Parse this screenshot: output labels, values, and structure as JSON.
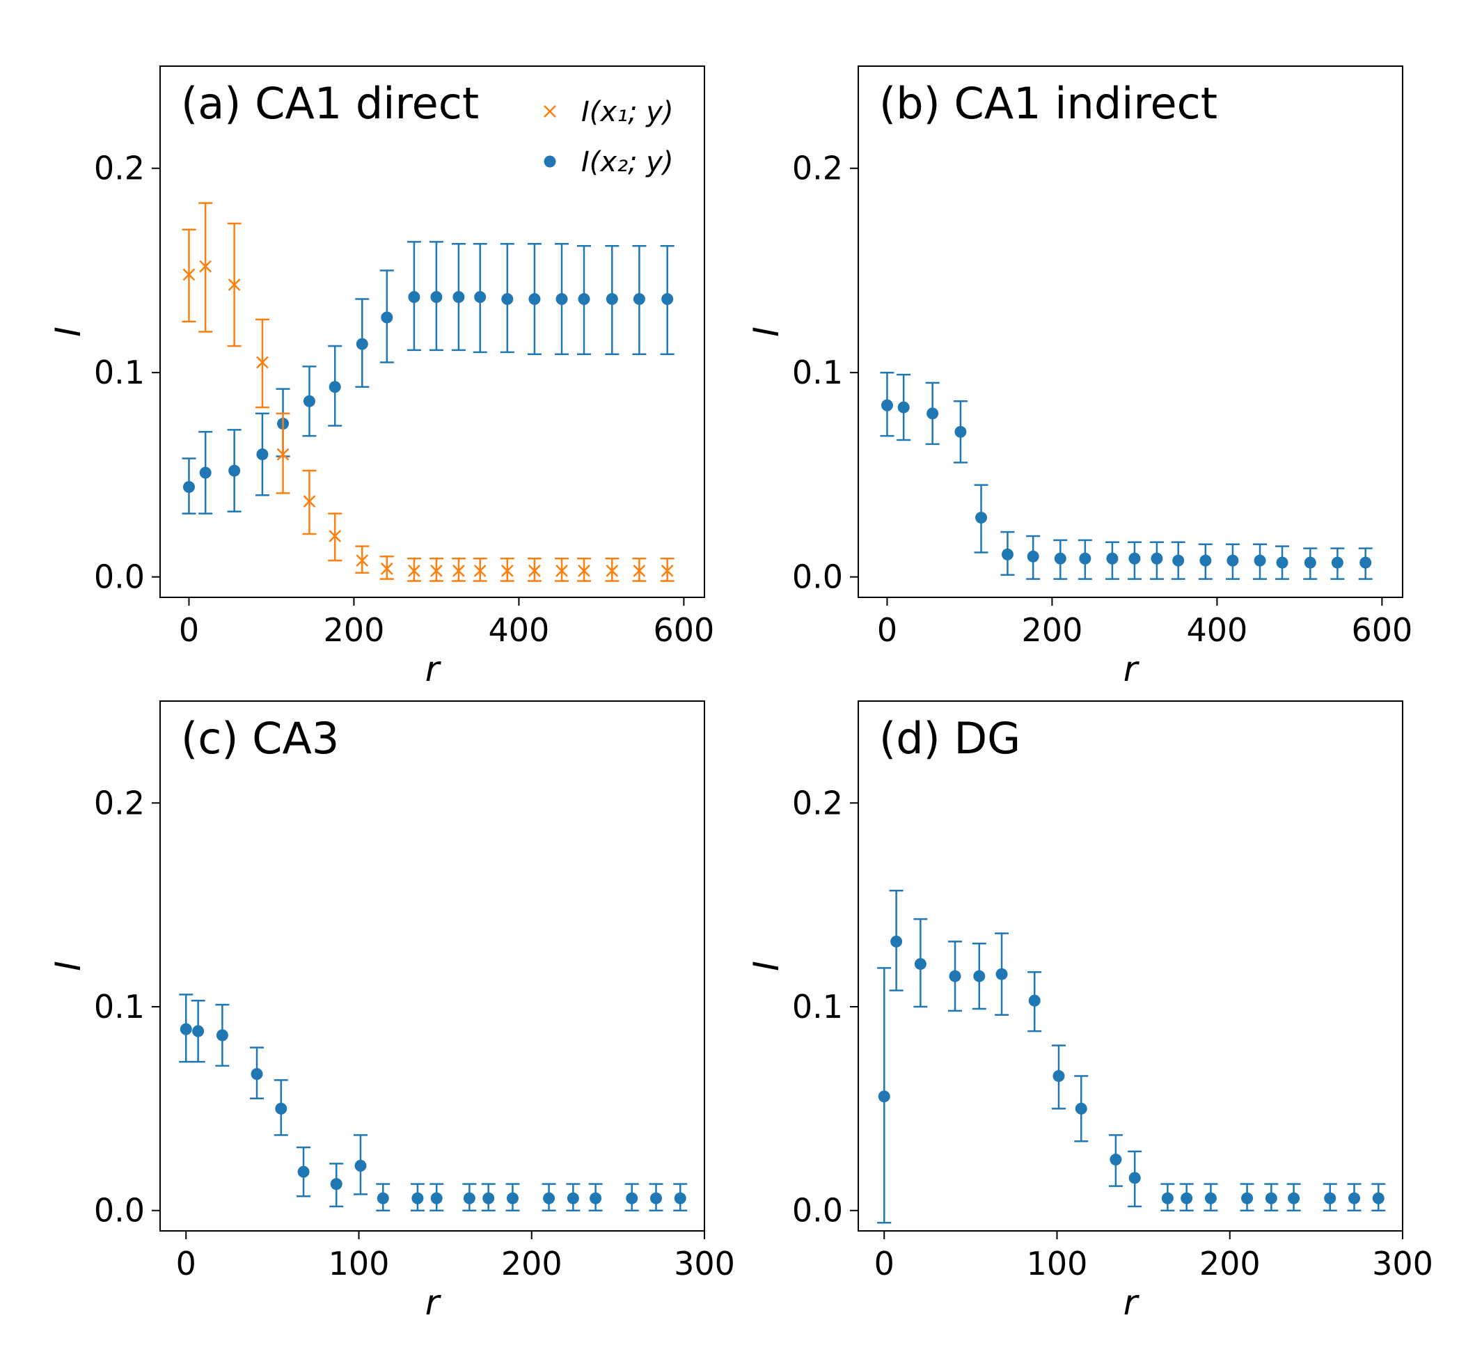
{
  "colors": {
    "series1": "#1f77b4",
    "series2": "#ff7f0e",
    "axes": "#000000"
  },
  "chart_data": [
    {
      "type": "scatter",
      "panel": "a",
      "title": "(a) CA1 direct",
      "xlabel": "r",
      "ylabel": "I",
      "xlim": [
        -35,
        625
      ],
      "ylim": [
        -0.01,
        0.25
      ],
      "xticks": [
        "0",
        "200",
        "400",
        "600"
      ],
      "xtick_values": [
        0,
        200,
        400,
        600
      ],
      "yticks": [
        "0.0",
        "0.1",
        "0.2"
      ],
      "ytick_values": [
        0.0,
        0.1,
        0.2
      ],
      "legend": {
        "position": "top-right",
        "entries": [
          {
            "label": "I(x₁; y)",
            "marker": "x",
            "color": "#ff7f0e"
          },
          {
            "label": "I(x₂; y)",
            "marker": "o",
            "color": "#1f77b4"
          }
        ]
      },
      "series": [
        {
          "label": "I(x₂; y)",
          "marker": "o",
          "color": "#1f77b4",
          "x": [
            0,
            20,
            55,
            89,
            114,
            146,
            177,
            210,
            240,
            273,
            300,
            327,
            353,
            386,
            419,
            452,
            479,
            513,
            546,
            580
          ],
          "y": [
            0.044,
            0.051,
            0.052,
            0.06,
            0.075,
            0.086,
            0.093,
            0.114,
            0.127,
            0.137,
            0.137,
            0.137,
            0.137,
            0.136,
            0.136,
            0.136,
            0.136,
            0.136,
            0.136,
            0.136
          ],
          "yerr_low": [
            0.031,
            0.031,
            0.032,
            0.04,
            0.059,
            0.069,
            0.074,
            0.093,
            0.105,
            0.111,
            0.111,
            0.111,
            0.11,
            0.11,
            0.109,
            0.109,
            0.109,
            0.109,
            0.109,
            0.109
          ],
          "yerr_high": [
            0.058,
            0.071,
            0.072,
            0.08,
            0.092,
            0.103,
            0.113,
            0.136,
            0.15,
            0.164,
            0.164,
            0.163,
            0.163,
            0.163,
            0.163,
            0.163,
            0.162,
            0.162,
            0.162,
            0.162
          ]
        },
        {
          "label": "I(x₁; y)",
          "marker": "x",
          "color": "#ff7f0e",
          "x": [
            0,
            20,
            55,
            89,
            114,
            146,
            177,
            210,
            240,
            273,
            300,
            327,
            353,
            386,
            419,
            452,
            479,
            513,
            546,
            580
          ],
          "y": [
            0.148,
            0.152,
            0.143,
            0.105,
            0.06,
            0.037,
            0.02,
            0.008,
            0.004,
            0.003,
            0.003,
            0.003,
            0.003,
            0.003,
            0.003,
            0.003,
            0.003,
            0.003,
            0.003,
            0.003
          ],
          "yerr_low": [
            0.125,
            0.12,
            0.113,
            0.083,
            0.041,
            0.021,
            0.008,
            0.002,
            -0.001,
            -0.002,
            -0.002,
            -0.002,
            -0.002,
            -0.002,
            -0.002,
            -0.002,
            -0.002,
            -0.002,
            -0.002,
            -0.002
          ],
          "yerr_high": [
            0.17,
            0.183,
            0.173,
            0.126,
            0.08,
            0.052,
            0.031,
            0.015,
            0.01,
            0.009,
            0.009,
            0.009,
            0.009,
            0.009,
            0.009,
            0.009,
            0.009,
            0.009,
            0.009,
            0.009
          ]
        }
      ]
    },
    {
      "type": "scatter",
      "panel": "b",
      "title": "(b) CA1 indirect",
      "xlabel": "r",
      "ylabel": "I",
      "xlim": [
        -35,
        625
      ],
      "ylim": [
        -0.01,
        0.25
      ],
      "xticks": [
        "0",
        "200",
        "400",
        "600"
      ],
      "xtick_values": [
        0,
        200,
        400,
        600
      ],
      "yticks": [
        "0.0",
        "0.1",
        "0.2"
      ],
      "ytick_values": [
        0.0,
        0.1,
        0.2
      ],
      "series": [
        {
          "label": "",
          "marker": "o",
          "color": "#1f77b4",
          "x": [
            0,
            20,
            55,
            89,
            114,
            146,
            177,
            210,
            240,
            273,
            300,
            327,
            353,
            386,
            419,
            452,
            479,
            513,
            546,
            580
          ],
          "y": [
            0.084,
            0.083,
            0.08,
            0.071,
            0.029,
            0.011,
            0.01,
            0.009,
            0.009,
            0.009,
            0.009,
            0.009,
            0.008,
            0.008,
            0.008,
            0.008,
            0.007,
            0.007,
            0.007,
            0.007
          ],
          "yerr_low": [
            0.069,
            0.067,
            0.065,
            0.056,
            0.012,
            0.001,
            -0.001,
            -0.001,
            -0.001,
            -0.001,
            -0.001,
            -0.001,
            -0.001,
            -0.001,
            -0.001,
            -0.001,
            -0.001,
            -0.001,
            -0.001,
            -0.001
          ],
          "yerr_high": [
            0.1,
            0.099,
            0.095,
            0.086,
            0.045,
            0.022,
            0.02,
            0.018,
            0.018,
            0.017,
            0.017,
            0.017,
            0.017,
            0.016,
            0.016,
            0.016,
            0.015,
            0.014,
            0.014,
            0.014
          ]
        }
      ]
    },
    {
      "type": "scatter",
      "panel": "c",
      "title": "(c) CA3",
      "xlabel": "r",
      "ylabel": "I",
      "xlim": [
        -15,
        300
      ],
      "ylim": [
        -0.01,
        0.25
      ],
      "xticks": [
        "0",
        "100",
        "200",
        "300"
      ],
      "xtick_values": [
        0,
        100,
        200,
        300
      ],
      "yticks": [
        "0.0",
        "0.1",
        "0.2"
      ],
      "ytick_values": [
        0.0,
        0.1,
        0.2
      ],
      "series": [
        {
          "label": "",
          "marker": "o",
          "color": "#1f77b4",
          "x": [
            0,
            7,
            21,
            41,
            55,
            68,
            87,
            101,
            114,
            134,
            145,
            164,
            175,
            189,
            210,
            224,
            237,
            258,
            272,
            286
          ],
          "y": [
            0.089,
            0.088,
            0.086,
            0.067,
            0.05,
            0.019,
            0.013,
            0.022,
            0.006,
            0.006,
            0.006,
            0.006,
            0.006,
            0.006,
            0.006,
            0.006,
            0.006,
            0.006,
            0.006,
            0.006
          ],
          "yerr_low": [
            0.073,
            0.073,
            0.071,
            0.055,
            0.037,
            0.007,
            0.002,
            0.008,
            0.0,
            0.0,
            0.0,
            0.0,
            0.0,
            0.0,
            0.0,
            0.0,
            0.0,
            0.0,
            0.0,
            0.0
          ],
          "yerr_high": [
            0.106,
            0.103,
            0.101,
            0.08,
            0.064,
            0.031,
            0.023,
            0.037,
            0.013,
            0.013,
            0.013,
            0.013,
            0.013,
            0.013,
            0.013,
            0.013,
            0.013,
            0.013,
            0.013,
            0.013
          ]
        }
      ]
    },
    {
      "type": "scatter",
      "panel": "d",
      "title": "(d) DG",
      "xlabel": "r",
      "ylabel": "I",
      "xlim": [
        -15,
        300
      ],
      "ylim": [
        -0.01,
        0.25
      ],
      "xticks": [
        "0",
        "100",
        "200",
        "300"
      ],
      "xtick_values": [
        0,
        100,
        200,
        300
      ],
      "yticks": [
        "0.0",
        "0.1",
        "0.2"
      ],
      "ytick_values": [
        0.0,
        0.1,
        0.2
      ],
      "series": [
        {
          "label": "",
          "marker": "o",
          "color": "#1f77b4",
          "x": [
            0,
            7,
            21,
            41,
            55,
            68,
            87,
            101,
            114,
            134,
            145,
            164,
            175,
            189,
            210,
            224,
            237,
            258,
            272,
            286
          ],
          "y": [
            0.056,
            0.132,
            0.121,
            0.115,
            0.115,
            0.116,
            0.103,
            0.066,
            0.05,
            0.025,
            0.016,
            0.006,
            0.006,
            0.006,
            0.006,
            0.006,
            0.006,
            0.006,
            0.006,
            0.006
          ],
          "yerr_low": [
            -0.006,
            0.108,
            0.1,
            0.098,
            0.099,
            0.096,
            0.088,
            0.05,
            0.034,
            0.012,
            0.002,
            0.0,
            0.0,
            0.0,
            0.0,
            0.0,
            0.0,
            0.0,
            0.0,
            0.0
          ],
          "yerr_high": [
            0.119,
            0.157,
            0.143,
            0.132,
            0.131,
            0.136,
            0.117,
            0.081,
            0.066,
            0.037,
            0.029,
            0.013,
            0.013,
            0.013,
            0.013,
            0.013,
            0.013,
            0.013,
            0.013,
            0.013
          ]
        }
      ]
    }
  ]
}
